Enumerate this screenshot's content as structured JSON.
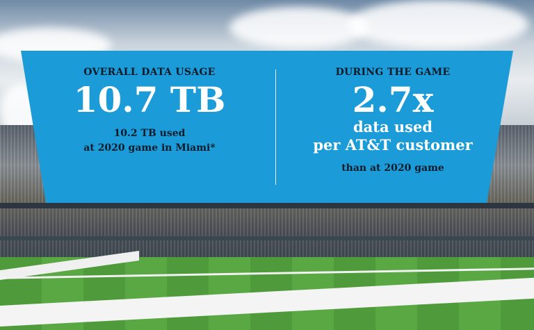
{
  "overall": {
    "heading": "OVERALL DATA USAGE",
    "value": "10.7 TB",
    "note_line1": "10.2 TB used",
    "note_line2": "at 2020 game in Miami*"
  },
  "during_game": {
    "heading": "DURING THE GAME",
    "value": "2.7x",
    "desc_line1": "data used",
    "desc_line2": "per AT&T customer",
    "note": "than at 2020 game"
  },
  "colors": {
    "panel": "#1b9bd7",
    "dark_text": "#0d1b2a"
  }
}
